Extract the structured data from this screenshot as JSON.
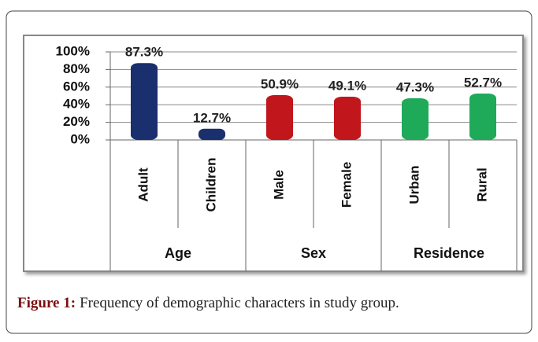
{
  "caption": {
    "label": "Figure 1:",
    "text": "Frequency of demographic characters in study group."
  },
  "chart_data": {
    "type": "bar",
    "categories": [
      "Adult",
      "Children",
      "Male",
      "Female",
      "Urban",
      "Rural"
    ],
    "groups": [
      {
        "name": "Age",
        "size": 2
      },
      {
        "name": "Sex",
        "size": 2
      },
      {
        "name": "Residence",
        "size": 2
      }
    ],
    "values": [
      87.3,
      12.7,
      50.9,
      49.1,
      47.3,
      52.7
    ],
    "value_labels": [
      "87.3%",
      "12.7%",
      "50.9%",
      "49.1%",
      "47.3%",
      "52.7%"
    ],
    "colors": [
      "#1a2f6e",
      "#1a2f6e",
      "#c0161c",
      "#c0161c",
      "#1faa5a",
      "#1faa5a"
    ],
    "ylim": [
      0,
      100
    ],
    "yticks": [
      {
        "value": 0,
        "label": "0%"
      },
      {
        "value": 20,
        "label": "20%"
      },
      {
        "value": 40,
        "label": "40%"
      },
      {
        "value": 60,
        "label": "60%"
      },
      {
        "value": 80,
        "label": "80%"
      },
      {
        "value": 100,
        "label": "100%"
      }
    ],
    "grid": true
  }
}
